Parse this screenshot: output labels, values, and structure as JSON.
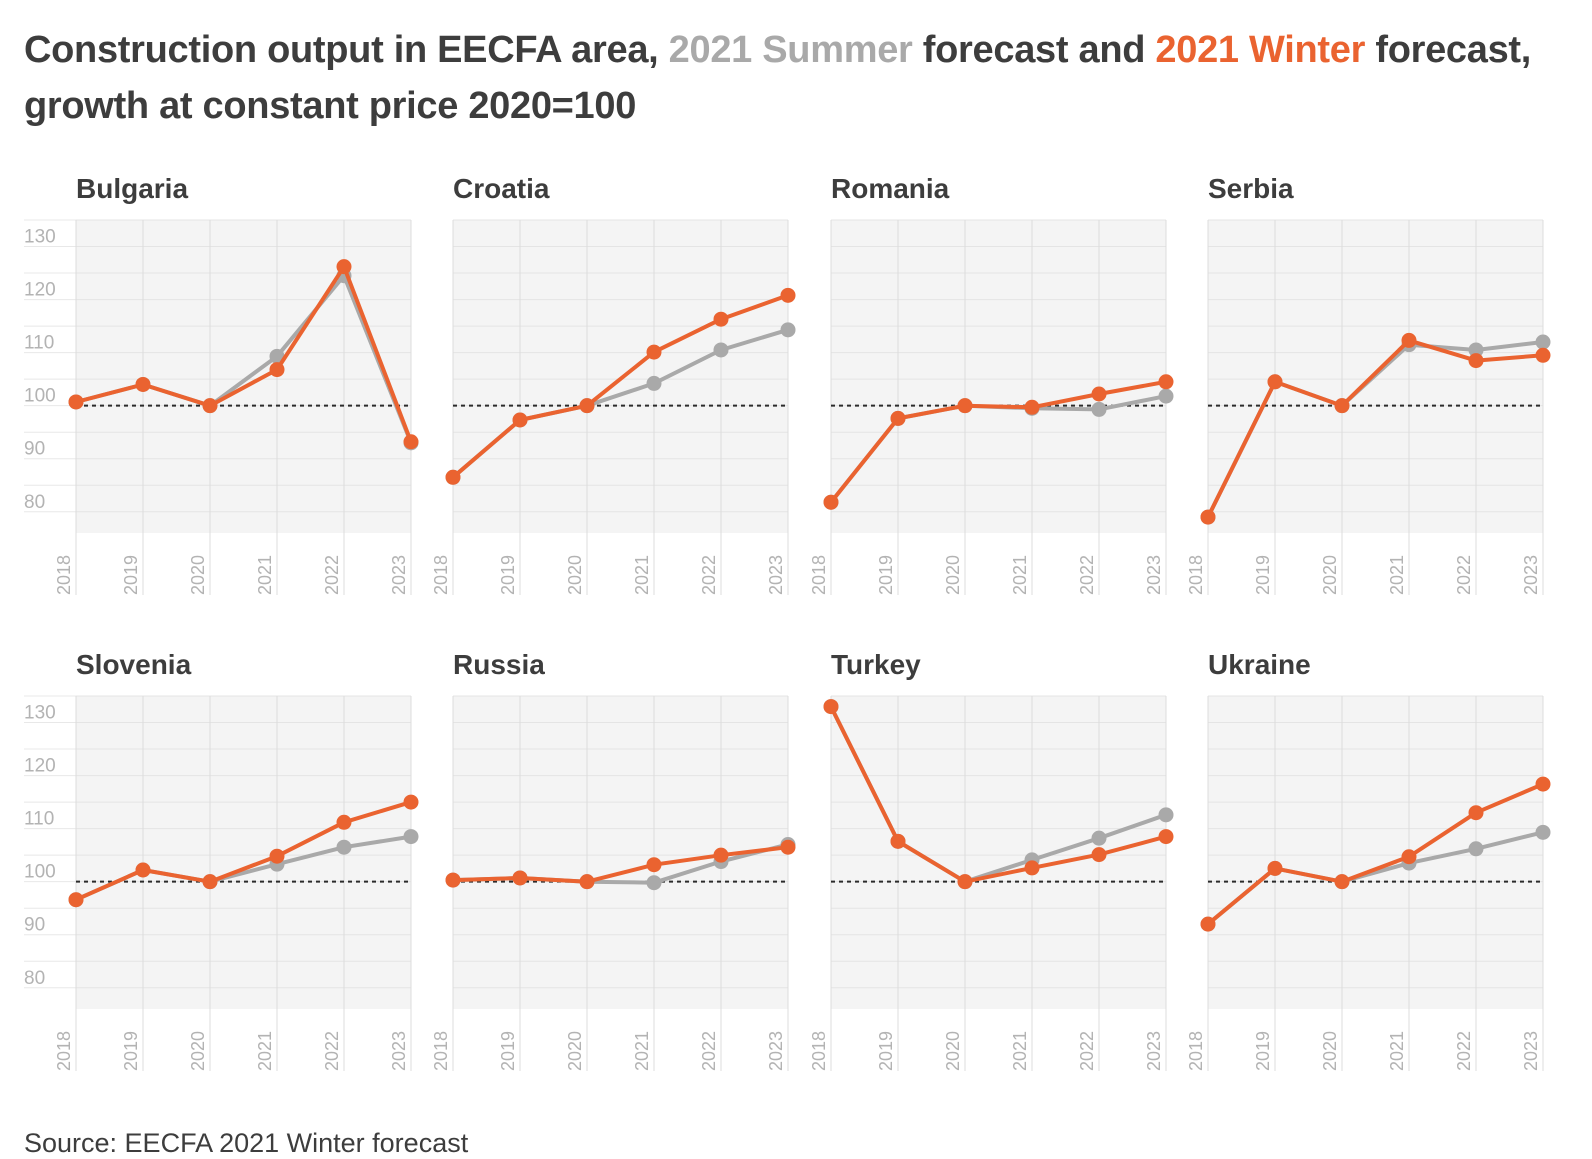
{
  "title": {
    "part1": "Construction output in EECFA area, ",
    "summer": "2021 Summer",
    "part2": " forecast and ",
    "winter": "2021 Winter",
    "part3": " forecast,",
    "line2": "growth at constant price 2020=100"
  },
  "source": "Source: EECFA 2021 Winter forecast",
  "colors": {
    "summer": "#a9a9a9",
    "winter": "#ea6330",
    "text": "#3d3d3d",
    "plot_bg": "#f4f4f4",
    "tick": "#b3b3b3"
  },
  "chart_data": [
    {
      "type": "line",
      "title": "Bulgaria",
      "categories": [
        "2018",
        "2019",
        "2020",
        "2021",
        "2022",
        "2023"
      ],
      "yticks": [
        "80",
        "90",
        "100",
        "110",
        "120",
        "130"
      ],
      "ylim": [
        76,
        135
      ],
      "reference_line": 100,
      "series": [
        {
          "name": "2021 Summer",
          "values": [
            100.7,
            104,
            100,
            109.3,
            124.5,
            93
          ]
        },
        {
          "name": "2021 Winter",
          "values": [
            100.7,
            104,
            100,
            106.8,
            126.2,
            93.2
          ]
        }
      ]
    },
    {
      "type": "line",
      "title": "Croatia",
      "categories": [
        "2018",
        "2019",
        "2020",
        "2021",
        "2022",
        "2023"
      ],
      "yticks": [
        "80",
        "90",
        "100",
        "110",
        "120",
        "130"
      ],
      "ylim": [
        76,
        135
      ],
      "series": [
        {
          "name": "2021 Summer",
          "values": [
            86.5,
            97.3,
            100,
            104.2,
            110.5,
            114.3
          ]
        },
        {
          "name": "2021 Winter",
          "values": [
            86.5,
            97.3,
            100,
            110.1,
            116.3,
            120.8
          ]
        }
      ]
    },
    {
      "type": "line",
      "title": "Romania",
      "categories": [
        "2018",
        "2019",
        "2020",
        "2021",
        "2022",
        "2023"
      ],
      "yticks": [
        "80",
        "90",
        "100",
        "110",
        "120",
        "130"
      ],
      "ylim": [
        76,
        135
      ],
      "series": [
        {
          "name": "2021 Summer",
          "values": [
            81.8,
            97.6,
            100,
            99.5,
            99.3,
            101.8
          ]
        },
        {
          "name": "2021 Winter",
          "values": [
            81.8,
            97.6,
            100,
            99.7,
            102.2,
            104.5
          ]
        }
      ]
    },
    {
      "type": "line",
      "title": "Serbia",
      "categories": [
        "2018",
        "2019",
        "2020",
        "2021",
        "2022",
        "2023"
      ],
      "yticks": [
        "80",
        "90",
        "100",
        "110",
        "120",
        "130"
      ],
      "ylim": [
        76,
        135
      ],
      "series": [
        {
          "name": "2021 Summer",
          "values": [
            79,
            104.5,
            100,
            111.5,
            110.5,
            112
          ]
        },
        {
          "name": "2021 Winter",
          "values": [
            79,
            104.5,
            100,
            112.3,
            108.5,
            109.5
          ]
        }
      ]
    },
    {
      "type": "line",
      "title": "Slovenia",
      "categories": [
        "2018",
        "2019",
        "2020",
        "2021",
        "2022",
        "2023"
      ],
      "yticks": [
        "80",
        "90",
        "100",
        "110",
        "120",
        "130"
      ],
      "ylim": [
        76,
        135
      ],
      "reference_line": 100,
      "series": [
        {
          "name": "2021 Summer",
          "values": [
            96.6,
            102.2,
            100,
            103.3,
            106.5,
            108.5
          ]
        },
        {
          "name": "2021 Winter",
          "values": [
            96.6,
            102.2,
            100,
            104.8,
            111.2,
            115
          ]
        }
      ]
    },
    {
      "type": "line",
      "title": "Russia",
      "categories": [
        "2018",
        "2019",
        "2020",
        "2021",
        "2022",
        "2023"
      ],
      "yticks": [
        "80",
        "90",
        "100",
        "110",
        "120",
        "130"
      ],
      "ylim": [
        76,
        135
      ],
      "series": [
        {
          "name": "2021 Summer",
          "values": [
            100.3,
            100.7,
            100,
            99.8,
            103.8,
            107
          ]
        },
        {
          "name": "2021 Winter",
          "values": [
            100.3,
            100.7,
            100,
            103.2,
            105,
            106.5
          ]
        }
      ]
    },
    {
      "type": "line",
      "title": "Turkey",
      "categories": [
        "2018",
        "2019",
        "2020",
        "2021",
        "2022",
        "2023"
      ],
      "yticks": [
        "80",
        "90",
        "100",
        "110",
        "120",
        "130"
      ],
      "ylim": [
        76,
        135
      ],
      "series": [
        {
          "name": "2021 Summer",
          "values": [
            133,
            107.6,
            100,
            104.1,
            108.2,
            112.6
          ]
        },
        {
          "name": "2021 Winter",
          "values": [
            133,
            107.6,
            100,
            102.6,
            105.1,
            108.5
          ]
        }
      ]
    },
    {
      "type": "line",
      "title": "Ukraine",
      "categories": [
        "2018",
        "2019",
        "2020",
        "2021",
        "2022",
        "2023"
      ],
      "yticks": [
        "80",
        "90",
        "100",
        "110",
        "120",
        "130"
      ],
      "ylim": [
        76,
        135
      ],
      "series": [
        {
          "name": "2021 Summer",
          "values": [
            92,
            102.5,
            100,
            103.5,
            106.2,
            109.3
          ]
        },
        {
          "name": "2021 Winter",
          "values": [
            92,
            102.5,
            100,
            104.7,
            113,
            118.4
          ]
        }
      ]
    }
  ]
}
